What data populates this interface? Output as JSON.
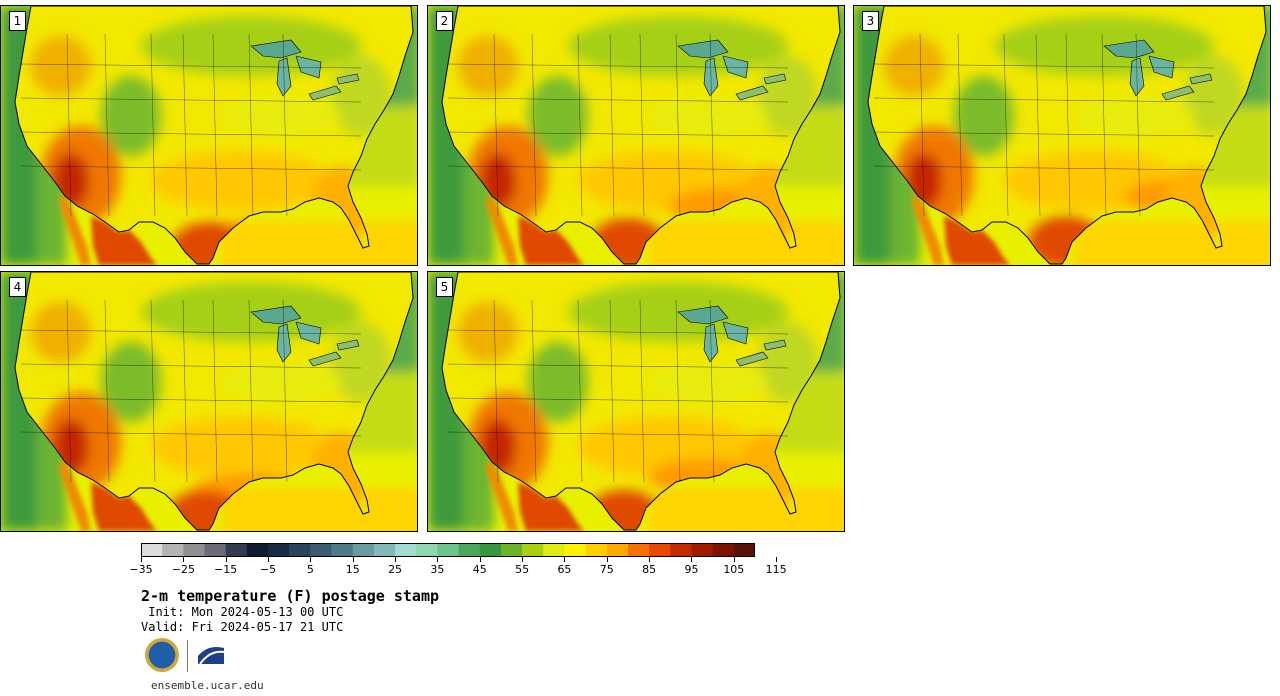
{
  "panels": [
    {
      "number": "1",
      "variant": 0
    },
    {
      "number": "2",
      "variant": 1
    },
    {
      "number": "3",
      "variant": 2
    },
    {
      "number": "4",
      "variant": 3
    },
    {
      "number": "5",
      "variant": 4
    }
  ],
  "colorbar": {
    "colors": [
      "#dcdcdc",
      "#b4b4b4",
      "#8f8f8f",
      "#6b6b7a",
      "#333b52",
      "#101a30",
      "#1a2a44",
      "#2a4460",
      "#3c5c74",
      "#4f7a88",
      "#6a9aa2",
      "#82b8b8",
      "#a0dcd2",
      "#8ed8b0",
      "#6cc48a",
      "#4aa85a",
      "#3a9640",
      "#6ab42a",
      "#a8d010",
      "#e0ec10",
      "#fff000",
      "#ffd000",
      "#ffa800",
      "#f87000",
      "#e84800",
      "#c82a00",
      "#a01c00",
      "#7a1400",
      "#5a1208"
    ],
    "tick_labels": [
      "−35",
      "−25",
      "−15",
      "−5",
      "5",
      "15",
      "25",
      "35",
      "45",
      "55",
      "65",
      "75",
      "85",
      "95",
      "105",
      "115"
    ]
  },
  "title": "2-m temperature (F) postage stamp",
  "init": " Init: Mon 2024-05-13 00 UTC",
  "valid": "Valid: Fri 2024-05-17 21 UTC",
  "logos": {
    "nsf": "NSF",
    "ncar": "NCAR"
  },
  "website": "ensemble.ucar.edu"
}
